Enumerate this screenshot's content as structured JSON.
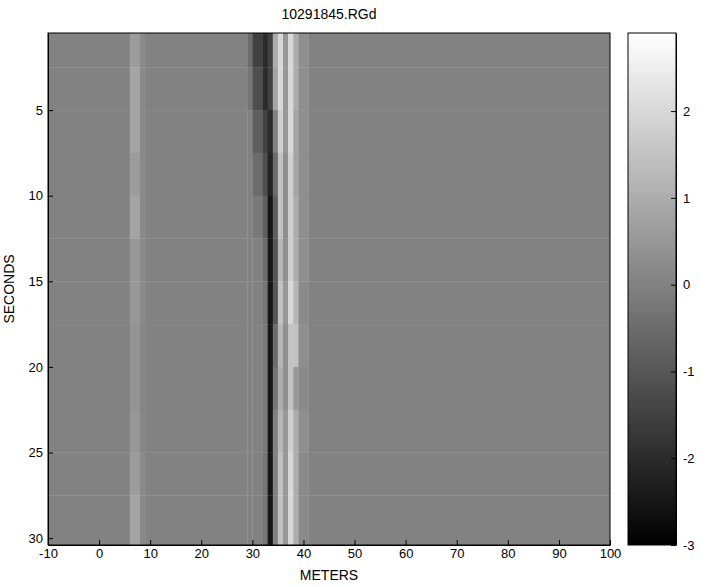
{
  "chart_data": {
    "type": "heatmap",
    "title": "10291845.RGd",
    "x_label": "METERS",
    "y_label": "SECONDS",
    "xlim": [
      -10,
      100
    ],
    "xticks": [
      -10,
      0,
      10,
      20,
      30,
      40,
      50,
      60,
      70,
      80,
      90,
      100
    ],
    "ylim": [
      0.5,
      30.4
    ],
    "yticks": [
      5,
      10,
      15,
      20,
      25,
      30
    ],
    "x_edges": [
      -10,
      6,
      8,
      9,
      29,
      30,
      32,
      33,
      34,
      35,
      36,
      37,
      38,
      39,
      41,
      100
    ],
    "y_edges": [
      0.5,
      2.5,
      5,
      7.5,
      10,
      12.5,
      15,
      17.5,
      20,
      22.5,
      25,
      27.5,
      30.4
    ],
    "cells": [
      [
        0,
        0.6,
        0.2,
        0,
        -0.5,
        -1.5,
        -2,
        -1.5,
        1,
        2,
        0.5,
        2,
        1,
        0.3,
        0
      ],
      [
        0,
        0.8,
        0.2,
        0,
        -0.3,
        -1.2,
        -2,
        -1.5,
        0.8,
        2,
        0.5,
        2,
        1,
        0.3,
        0
      ],
      [
        0,
        0.8,
        0.2,
        0,
        0,
        -0.8,
        -1.5,
        -2,
        0,
        1.8,
        0.5,
        2,
        0.8,
        0.3,
        0
      ],
      [
        0,
        0.6,
        0.2,
        0,
        0,
        -0.5,
        -1.2,
        -2.2,
        -0.5,
        1.5,
        0.3,
        1.8,
        0.8,
        0.3,
        0
      ],
      [
        0,
        0.8,
        0.2,
        0,
        0,
        -0.2,
        -0.8,
        -2.5,
        -0.8,
        1.5,
        0.3,
        1.8,
        1,
        0.3,
        0
      ],
      [
        0,
        0.5,
        0.2,
        0,
        0,
        0,
        -0.5,
        -2.5,
        -1,
        1.2,
        0.3,
        1.8,
        1,
        0.3,
        0
      ],
      [
        0,
        0.5,
        0.2,
        0,
        0,
        0,
        -0.3,
        -2.5,
        -1,
        1.5,
        0.5,
        2,
        1.2,
        0.2,
        0
      ],
      [
        0,
        0.4,
        0.1,
        0,
        0,
        0,
        -0.2,
        -2.5,
        -0.5,
        1.2,
        0.3,
        1.5,
        1.5,
        0.3,
        0
      ],
      [
        0,
        0.4,
        0.1,
        0,
        0,
        0,
        -0.2,
        -2.5,
        -0.3,
        1,
        0.3,
        1.5,
        0.5,
        0.2,
        0
      ],
      [
        0,
        0.5,
        0.1,
        0,
        0,
        0,
        -0.2,
        -2.5,
        0,
        1.2,
        0.5,
        1.8,
        1,
        0.3,
        0
      ],
      [
        0,
        0.6,
        0.2,
        0,
        0,
        0,
        -0.3,
        -2.5,
        0,
        1.5,
        0.5,
        2,
        1,
        0.2,
        0
      ],
      [
        0,
        0.8,
        0.2,
        0,
        0,
        0,
        -0.3,
        -2.5,
        0,
        1.5,
        0.5,
        2,
        1,
        0.2,
        0
      ]
    ],
    "clim": [
      -3,
      2.9
    ],
    "cticks": [
      -3,
      -2,
      -1,
      0,
      1,
      2
    ]
  }
}
